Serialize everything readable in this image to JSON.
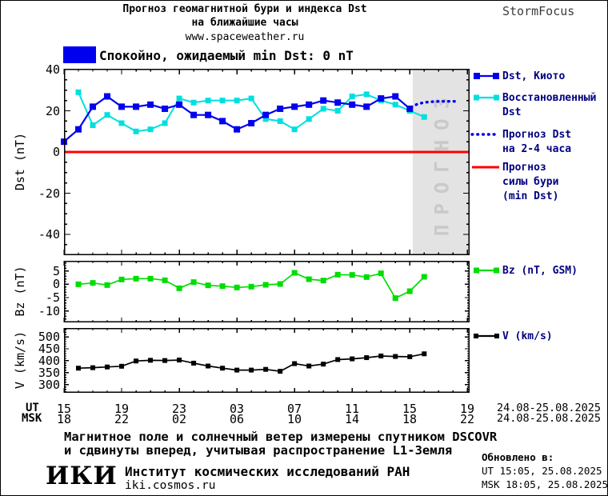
{
  "header": {
    "title_line1": "Прогноз геомагнитной бури и индекса Dst",
    "title_line2": "на ближайшие часы",
    "website": "www.spaceweather.ru",
    "brand": "StormFocus"
  },
  "status_banner": {
    "color": "#0000ee",
    "text": "Спокойно, ожидаемый min Dst: 0 nT"
  },
  "legend": {
    "dst_kyoto": "Dst, Киото",
    "restored1": "Восстановленный",
    "restored2": "Dst",
    "forecast1": "Прогноз Dst",
    "forecast2": "на 2-4 часа",
    "storm1": "Прогноз",
    "storm2": "силы бури",
    "storm3": "(min Dst)",
    "bz": "Bz (nT, GSM)",
    "v": "V (km/s)"
  },
  "x_axis": {
    "ut_label": "UT",
    "msk_label": "MSK",
    "ut_ticks": [
      "15",
      "19",
      "23",
      "03",
      "07",
      "11",
      "15",
      "19"
    ],
    "msk_ticks": [
      "18",
      "22",
      "02",
      "06",
      "10",
      "14",
      "18",
      "22"
    ],
    "ut_date": "24.08-25.08.2025",
    "msk_date": "24.08-25.08.2025"
  },
  "footer": {
    "note_line1": "Магнитное поле и солнечный ветер измерены спутником DSCOVR",
    "note_line2": "и сдвинуты вперед, учитывая распространение L1-Земля",
    "logo": "ИКИ",
    "institute": "Институт космических исследований РАН",
    "website": "iki.cosmos.ru",
    "updated_label": "Обновлено в:",
    "updated_ut": "UT  15:05, 25.08.2025",
    "updated_msk": "MSK 18:05, 25.08.2025"
  },
  "chart_data": [
    {
      "id": "dst",
      "type": "line",
      "title": "Прогноз геомагнитной бури и индекса Dst на ближайшие часы",
      "xlabel": "UT, hours 15:00 24.08 - 19:00 25.08.2025",
      "ylabel": "Dst (nT)",
      "ylim": [
        -50.1,
        40.4
      ],
      "xlim_hours": [
        0,
        28.15
      ],
      "y_major_ticks": [
        40,
        20,
        0,
        -20,
        -40
      ],
      "y_minor_step": 5,
      "x_major_step_hours": 4,
      "x_minor_step_hours": 1,
      "grid": false,
      "forecast_region": {
        "start_hour": 24.2,
        "fill": "#e3e3e3",
        "label": "ПРОГНОЗ",
        "label_color": "#c9c9c9"
      },
      "storm_forecast_line": {
        "name": "Прогноз силы бури (min Dst)",
        "value": 0,
        "color": "#ff0000"
      },
      "series": [
        {
          "name": "Dst, Киото",
          "color": "#0000ee",
          "marker": 8,
          "width": 2.2,
          "z": 2,
          "points": [
            [
              0,
              5
            ],
            [
              1,
              11
            ],
            [
              2,
              22
            ],
            [
              3,
              27
            ],
            [
              4,
              22
            ],
            [
              5,
              22
            ],
            [
              6,
              23
            ],
            [
              7,
              21
            ],
            [
              8,
              23
            ],
            [
              9,
              18
            ],
            [
              10,
              18
            ],
            [
              11,
              15
            ],
            [
              12,
              11
            ],
            [
              13,
              14
            ],
            [
              14,
              18
            ],
            [
              15,
              21
            ],
            [
              16,
              22
            ],
            [
              17,
              23
            ],
            [
              18,
              25
            ],
            [
              19,
              24
            ],
            [
              20,
              23
            ],
            [
              21,
              22
            ],
            [
              22,
              26
            ],
            [
              23,
              27
            ],
            [
              24,
              21
            ]
          ]
        },
        {
          "name": "Восстановленный Dst",
          "color": "#00dfdf",
          "marker": 7,
          "width": 2,
          "z": 1,
          "points": [
            [
              1,
              29
            ],
            [
              2,
              13
            ],
            [
              3,
              18
            ],
            [
              4,
              14
            ],
            [
              5,
              10
            ],
            [
              6,
              11
            ],
            [
              7,
              14
            ],
            [
              8,
              26
            ],
            [
              9,
              24
            ],
            [
              10,
              25
            ],
            [
              11,
              25
            ],
            [
              12,
              25
            ],
            [
              13,
              26
            ],
            [
              14,
              16
            ],
            [
              15,
              15
            ],
            [
              16,
              11
            ],
            [
              17,
              16
            ],
            [
              18,
              21
            ],
            [
              19,
              20
            ],
            [
              20,
              27
            ],
            [
              21,
              28
            ],
            [
              22,
              25
            ],
            [
              23,
              23
            ],
            [
              24,
              20
            ],
            [
              25,
              17
            ]
          ]
        },
        {
          "name": "Прогноз Dst на 2-4 часа",
          "color": "#0000ee",
          "style": "dotted",
          "width": 3.4,
          "z": 3,
          "points": [
            [
              24.1,
              21.8
            ],
            [
              24.5,
              23.2
            ],
            [
              25,
              24.1
            ],
            [
              25.7,
              24.5
            ],
            [
              26.5,
              24.6
            ],
            [
              27.3,
              24.6
            ]
          ]
        }
      ]
    },
    {
      "id": "bz",
      "type": "line",
      "title": "",
      "ylabel": "Bz (nT)",
      "ylim": [
        -14.3,
        8.8
      ],
      "xlim_hours": [
        0,
        28.15
      ],
      "y_major_ticks": [
        5,
        0,
        -5,
        -10
      ],
      "y_minor_step": 1,
      "x_major_step_hours": 4,
      "x_minor_step_hours": 1,
      "grid": false,
      "series": [
        {
          "name": "Bz (nT, GSM)",
          "color": "#00dd00",
          "marker": 7,
          "width": 1.7,
          "z": 1,
          "points": [
            [
              1,
              0
            ],
            [
              2,
              0.5
            ],
            [
              3,
              -0.3
            ],
            [
              4,
              1.8
            ],
            [
              5,
              2.1
            ],
            [
              6,
              2.1
            ],
            [
              7,
              1.5
            ],
            [
              8,
              -1.5
            ],
            [
              9,
              0.8
            ],
            [
              10,
              -0.4
            ],
            [
              11,
              -0.7
            ],
            [
              12,
              -1.2
            ],
            [
              13,
              -0.9
            ],
            [
              14,
              -0.2
            ],
            [
              15,
              0.1
            ],
            [
              16,
              4.3
            ],
            [
              17,
              1.9
            ],
            [
              18,
              1.4
            ],
            [
              19,
              3.6
            ],
            [
              20,
              3.5
            ],
            [
              21,
              2.7
            ],
            [
              22,
              4.1
            ],
            [
              23,
              -5.2
            ],
            [
              24,
              -2.6
            ],
            [
              25,
              2.8
            ]
          ]
        }
      ]
    },
    {
      "id": "v",
      "type": "line",
      "title": "",
      "ylabel": "V (km/s)",
      "ylim": [
        266,
        537
      ],
      "xlim_hours": [
        0,
        28.15
      ],
      "y_major_ticks": [
        500,
        450,
        400,
        350,
        300
      ],
      "y_minor_step": 10,
      "x_major_step_hours": 4,
      "x_minor_step_hours": 1,
      "grid": false,
      "series": [
        {
          "name": "V (km/s)",
          "color": "#000000",
          "marker": 6,
          "width": 1.7,
          "z": 1,
          "points": [
            [
              1,
              369
            ],
            [
              2,
              371
            ],
            [
              3,
              374
            ],
            [
              4,
              377
            ],
            [
              5,
              399
            ],
            [
              6,
              402
            ],
            [
              7,
              401
            ],
            [
              8,
              403
            ],
            [
              9,
              390
            ],
            [
              10,
              378
            ],
            [
              11,
              369
            ],
            [
              12,
              361
            ],
            [
              13,
              361
            ],
            [
              14,
              364
            ],
            [
              15,
              356
            ],
            [
              16,
              388
            ],
            [
              17,
              378
            ],
            [
              18,
              386
            ],
            [
              19,
              405
            ],
            [
              20,
              408
            ],
            [
              21,
              413
            ],
            [
              22,
              420
            ],
            [
              23,
              418
            ],
            [
              24,
              417
            ],
            [
              25,
              429
            ]
          ]
        }
      ]
    }
  ]
}
